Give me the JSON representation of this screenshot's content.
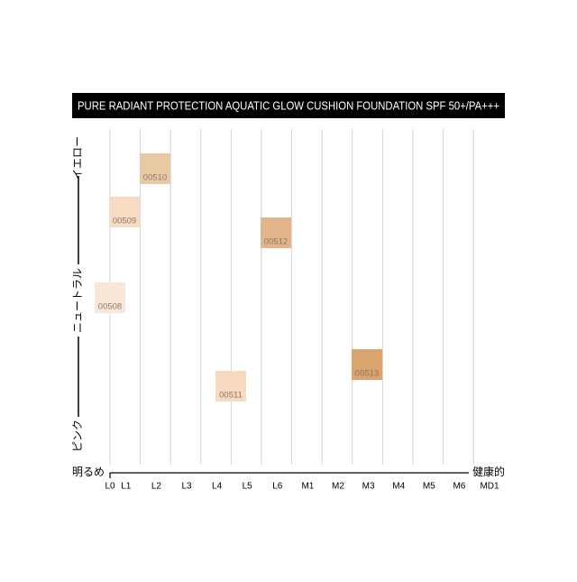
{
  "header": {
    "title": "PURE RADIANT PROTECTION AQUATIC GLOW CUSHION FOUNDATION SPF 50+/PA+++"
  },
  "y_axis": {
    "labels": [
      "イエロー",
      "ニュートラル",
      "ピンク"
    ]
  },
  "x_axis": {
    "start": "明るめ",
    "end": "健康的",
    "categories": [
      "L0",
      "L1",
      "L2",
      "L3",
      "L4",
      "L5",
      "L6",
      "M1",
      "M2",
      "M3",
      "M4",
      "M5",
      "M6",
      "MD1"
    ]
  },
  "swatches": [
    {
      "label": "00508",
      "color": "#f8e6d6"
    },
    {
      "label": "00509",
      "color": "#f6dcc2"
    },
    {
      "label": "00510",
      "color": "#e9c9a4"
    },
    {
      "label": "00512",
      "color": "#e2b58d"
    },
    {
      "label": "00511",
      "color": "#f7d9bf"
    },
    {
      "label": "00513",
      "color": "#d9a46d"
    }
  ]
}
